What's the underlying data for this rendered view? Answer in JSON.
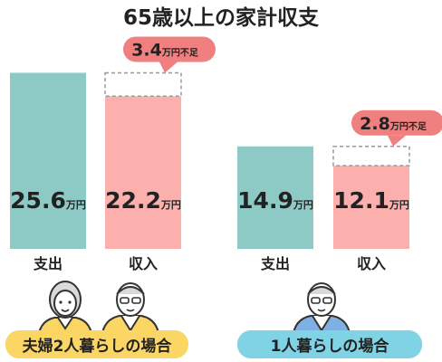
{
  "chart_data": [
    {
      "type": "bar",
      "group_label": "夫婦2人暮らしの場合",
      "categories": [
        "支出",
        "収入"
      ],
      "values": [
        25.6,
        22.2
      ],
      "unit": "万円",
      "shortfall_label": "3.4万円不足",
      "shortfall_value": 3.4
    },
    {
      "type": "bar",
      "group_label": "1人暮らしの場合",
      "categories": [
        "支出",
        "収入"
      ],
      "values": [
        14.9,
        12.1
      ],
      "unit": "万円",
      "shortfall_label": "2.8万円不足",
      "shortfall_value": 2.8
    }
  ],
  "title": "65歳以上の家計収支",
  "colors": {
    "expense": "#8ecac5",
    "income": "#fbb0ae",
    "callout": "#f07f7f",
    "label_yellow": "#fbd664",
    "label_blue": "#7fd3e4",
    "dashed": "#999999"
  },
  "illustrations": [
    "elderly-woman-icon",
    "elderly-man-icon",
    "elderly-man-icon"
  ]
}
